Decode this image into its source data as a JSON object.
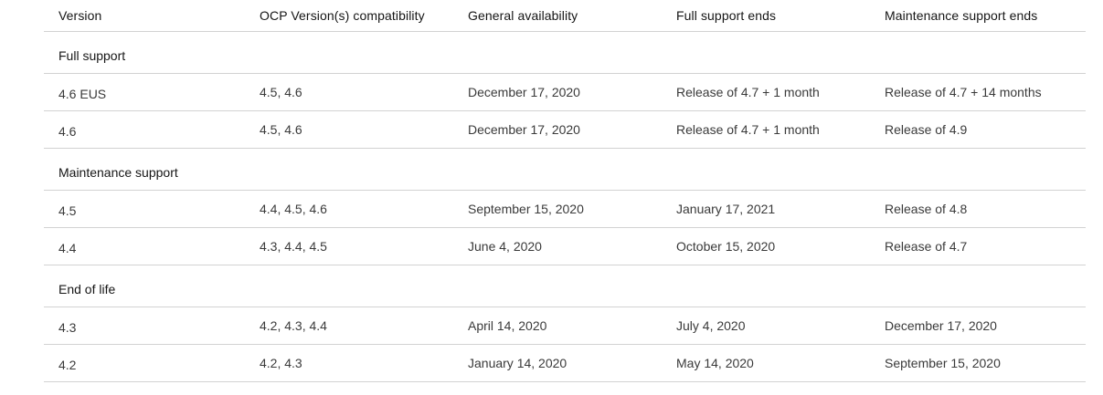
{
  "table": {
    "headers": [
      "Version",
      "OCP Version(s) compatibility",
      "General availability",
      "Full support ends",
      "Maintenance support ends"
    ],
    "sections": [
      {
        "title": "Full support",
        "rows": [
          [
            "4.6 EUS",
            "4.5, 4.6",
            "December 17, 2020",
            "Release of 4.7 + 1 month",
            "Release of 4.7 + 14 months"
          ],
          [
            "4.6",
            "4.5, 4.6",
            "December 17, 2020",
            "Release of 4.7 + 1 month",
            "Release of 4.9"
          ]
        ]
      },
      {
        "title": "Maintenance support",
        "rows": [
          [
            "4.5",
            "4.4, 4.5, 4.6",
            "September 15, 2020",
            "January 17, 2021",
            "Release of 4.8"
          ],
          [
            "4.4",
            "4.3, 4.4, 4.5",
            "June 4, 2020",
            "October 15, 2020",
            "Release of 4.7"
          ]
        ]
      },
      {
        "title": "End of life",
        "rows": [
          [
            "4.3",
            "4.2, 4.3, 4.4",
            "April 14, 2020",
            "July 4, 2020",
            "December 17, 2020"
          ],
          [
            "4.2",
            "4.2, 4.3",
            "January 14, 2020",
            "May 14, 2020",
            "September 15, 2020"
          ]
        ]
      }
    ]
  }
}
